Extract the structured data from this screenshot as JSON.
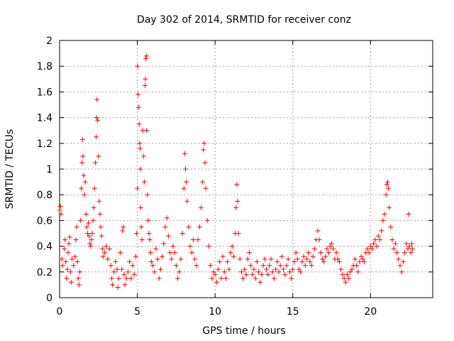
{
  "chart_data": {
    "type": "scatter",
    "title": "Day 302 of 2014, SRMTID for receiver conz",
    "xlabel": "GPS time / hours",
    "ylabel": "SRMTID / TECUs",
    "xlim": [
      0,
      24
    ],
    "ylim": [
      0,
      2
    ],
    "x_ticks": [
      0,
      5,
      10,
      15,
      20
    ],
    "y_ticks": [
      0,
      0.2,
      0.4,
      0.6,
      0.8,
      1,
      1.2,
      1.4,
      1.6,
      1.8,
      2
    ],
    "x_tick_labels": [
      "0",
      "5",
      "10",
      "15",
      "20"
    ],
    "y_tick_labels": [
      "0",
      "0.2",
      "0.4",
      "0.6",
      "0.8",
      "1",
      "1.2",
      "1.4",
      "1.6",
      "1.8",
      "2"
    ],
    "grid": true,
    "marker": "+",
    "marker_color": "#ff0000",
    "series": [
      {
        "name": "SRMTID",
        "points": [
          [
            0.0,
            0.68
          ],
          [
            0.05,
            0.71
          ],
          [
            0.1,
            0.65
          ],
          [
            0.15,
            0.3
          ],
          [
            0.2,
            0.25
          ],
          [
            0.3,
            0.38
          ],
          [
            0.35,
            0.45
          ],
          [
            0.4,
            0.28
          ],
          [
            0.45,
            0.15
          ],
          [
            0.5,
            0.22
          ],
          [
            0.55,
            0.35
          ],
          [
            0.6,
            0.42
          ],
          [
            0.65,
            0.47
          ],
          [
            0.7,
            0.2
          ],
          [
            0.75,
            0.12
          ],
          [
            0.8,
            0.3
          ],
          [
            0.9,
            0.25
          ],
          [
            1.0,
            0.32
          ],
          [
            1.05,
            0.45
          ],
          [
            1.1,
            0.55
          ],
          [
            1.15,
            0.28
          ],
          [
            1.2,
            0.15
          ],
          [
            1.25,
            0.1
          ],
          [
            1.3,
            0.2
          ],
          [
            1.35,
            0.6
          ],
          [
            1.4,
            0.85
          ],
          [
            1.45,
            1.05
          ],
          [
            1.48,
            1.23
          ],
          [
            1.5,
            1.1
          ],
          [
            1.55,
            0.95
          ],
          [
            1.6,
            0.8
          ],
          [
            1.65,
            0.9
          ],
          [
            1.7,
            0.65
          ],
          [
            1.75,
            0.55
          ],
          [
            1.8,
            0.5
          ],
          [
            1.85,
            0.58
          ],
          [
            1.9,
            0.48
          ],
          [
            1.95,
            0.42
          ],
          [
            2.0,
            0.4
          ],
          [
            2.05,
            0.45
          ],
          [
            2.1,
            0.5
          ],
          [
            2.15,
            0.6
          ],
          [
            2.2,
            0.7
          ],
          [
            2.25,
            0.85
          ],
          [
            2.3,
            1.05
          ],
          [
            2.35,
            1.25
          ],
          [
            2.38,
            1.4
          ],
          [
            2.4,
            1.54
          ],
          [
            2.45,
            1.38
          ],
          [
            2.5,
            1.1
          ],
          [
            2.55,
            0.75
          ],
          [
            2.6,
            0.65
          ],
          [
            2.65,
            0.55
          ],
          [
            2.7,
            0.48
          ],
          [
            2.75,
            0.38
          ],
          [
            2.8,
            0.32
          ],
          [
            2.9,
            0.35
          ],
          [
            3.0,
            0.4
          ],
          [
            3.1,
            0.3
          ],
          [
            3.2,
            0.38
          ],
          [
            3.3,
            0.25
          ],
          [
            3.35,
            0.15
          ],
          [
            3.4,
            0.1
          ],
          [
            3.5,
            0.2
          ],
          [
            3.6,
            0.28
          ],
          [
            3.7,
            0.22
          ],
          [
            3.75,
            0.08
          ],
          [
            3.8,
            0.15
          ],
          [
            3.9,
            0.35
          ],
          [
            4.0,
            0.22
          ],
          [
            4.05,
            0.52
          ],
          [
            4.1,
            0.55
          ],
          [
            4.15,
            0.18
          ],
          [
            4.2,
            0.1
          ],
          [
            4.3,
            0.15
          ],
          [
            4.4,
            0.2
          ],
          [
            4.5,
            0.28
          ],
          [
            4.6,
            0.15
          ],
          [
            4.7,
            0.25
          ],
          [
            4.8,
            0.18
          ],
          [
            4.9,
            0.32
          ],
          [
            4.95,
            0.5
          ],
          [
            5.0,
            0.85
          ],
          [
            5.02,
            1.8
          ],
          [
            5.05,
            1.58
          ],
          [
            5.08,
            1.48
          ],
          [
            5.12,
            1.35
          ],
          [
            5.15,
            1.2
          ],
          [
            5.18,
            1.16
          ],
          [
            5.2,
            1.0
          ],
          [
            5.22,
            0.7
          ],
          [
            5.25,
            0.55
          ],
          [
            5.3,
            0.45
          ],
          [
            5.35,
            1.3
          ],
          [
            5.4,
            1.1
          ],
          [
            5.45,
            0.9
          ],
          [
            5.5,
            1.65
          ],
          [
            5.52,
            1.7
          ],
          [
            5.55,
            1.86
          ],
          [
            5.58,
            1.88
          ],
          [
            5.6,
            1.3
          ],
          [
            5.65,
            0.8
          ],
          [
            5.7,
            0.6
          ],
          [
            5.75,
            0.5
          ],
          [
            5.8,
            0.45
          ],
          [
            5.85,
            0.35
          ],
          [
            5.9,
            0.28
          ],
          [
            6.0,
            0.25
          ],
          [
            6.1,
            0.2
          ],
          [
            6.2,
            0.38
          ],
          [
            6.3,
            0.3
          ],
          [
            6.4,
            0.15
          ],
          [
            6.5,
            0.22
          ],
          [
            6.6,
            0.32
          ],
          [
            6.7,
            0.42
          ],
          [
            6.8,
            0.55
          ],
          [
            6.9,
            0.62
          ],
          [
            7.0,
            0.48
          ],
          [
            7.1,
            0.35
          ],
          [
            7.2,
            0.3
          ],
          [
            7.3,
            0.4
          ],
          [
            7.4,
            0.35
          ],
          [
            7.5,
            0.25
          ],
          [
            7.6,
            0.15
          ],
          [
            7.7,
            0.2
          ],
          [
            7.8,
            0.3
          ],
          [
            7.9,
            0.5
          ],
          [
            8.0,
            0.85
          ],
          [
            8.05,
            1.12
          ],
          [
            8.1,
            1.0
          ],
          [
            8.15,
            0.9
          ],
          [
            8.2,
            0.75
          ],
          [
            8.3,
            0.55
          ],
          [
            8.4,
            0.4
          ],
          [
            8.5,
            0.35
          ],
          [
            8.6,
            0.45
          ],
          [
            8.7,
            0.3
          ],
          [
            8.8,
            0.25
          ],
          [
            8.9,
            0.45
          ],
          [
            9.0,
            0.55
          ],
          [
            9.1,
            0.7
          ],
          [
            9.2,
            0.9
          ],
          [
            9.25,
            1.15
          ],
          [
            9.3,
            1.2
          ],
          [
            9.35,
            1.05
          ],
          [
            9.4,
            0.85
          ],
          [
            9.5,
            0.6
          ],
          [
            9.6,
            0.4
          ],
          [
            9.7,
            0.25
          ],
          [
            9.8,
            0.15
          ],
          [
            9.9,
            0.2
          ],
          [
            10.0,
            0.18
          ],
          [
            10.1,
            0.12
          ],
          [
            10.2,
            0.22
          ],
          [
            10.3,
            0.28
          ],
          [
            10.4,
            0.15
          ],
          [
            10.5,
            0.32
          ],
          [
            10.6,
            0.2
          ],
          [
            10.7,
            0.15
          ],
          [
            10.8,
            0.28
          ],
          [
            10.9,
            0.22
          ],
          [
            11.0,
            0.35
          ],
          [
            11.1,
            0.4
          ],
          [
            11.2,
            0.32
          ],
          [
            11.3,
            0.5
          ],
          [
            11.35,
            0.7
          ],
          [
            11.4,
            0.88
          ],
          [
            11.45,
            0.75
          ],
          [
            11.5,
            0.5
          ],
          [
            11.6,
            0.3
          ],
          [
            11.7,
            0.2
          ],
          [
            11.8,
            0.15
          ],
          [
            11.9,
            0.22
          ],
          [
            12.0,
            0.18
          ],
          [
            12.1,
            0.3
          ],
          [
            12.2,
            0.35
          ],
          [
            12.3,
            0.25
          ],
          [
            12.4,
            0.18
          ],
          [
            12.5,
            0.22
          ],
          [
            12.6,
            0.15
          ],
          [
            12.7,
            0.28
          ],
          [
            12.8,
            0.2
          ],
          [
            12.9,
            0.12
          ],
          [
            13.0,
            0.18
          ],
          [
            13.1,
            0.25
          ],
          [
            13.2,
            0.3
          ],
          [
            13.3,
            0.22
          ],
          [
            13.4,
            0.18
          ],
          [
            13.5,
            0.25
          ],
          [
            13.6,
            0.3
          ],
          [
            13.7,
            0.2
          ],
          [
            13.8,
            0.15
          ],
          [
            13.9,
            0.22
          ],
          [
            14.0,
            0.28
          ],
          [
            14.1,
            0.2
          ],
          [
            14.2,
            0.25
          ],
          [
            14.3,
            0.32
          ],
          [
            14.4,
            0.22
          ],
          [
            14.5,
            0.18
          ],
          [
            14.6,
            0.25
          ],
          [
            14.7,
            0.3
          ],
          [
            14.8,
            0.2
          ],
          [
            14.9,
            0.15
          ],
          [
            15.0,
            0.22
          ],
          [
            15.1,
            0.28
          ],
          [
            15.2,
            0.35
          ],
          [
            15.3,
            0.3
          ],
          [
            15.4,
            0.22
          ],
          [
            15.5,
            0.2
          ],
          [
            15.6,
            0.28
          ],
          [
            15.7,
            0.32
          ],
          [
            15.8,
            0.25
          ],
          [
            15.9,
            0.3
          ],
          [
            16.0,
            0.35
          ],
          [
            16.1,
            0.28
          ],
          [
            16.2,
            0.25
          ],
          [
            16.3,
            0.32
          ],
          [
            16.4,
            0.38
          ],
          [
            16.5,
            0.45
          ],
          [
            16.6,
            0.52
          ],
          [
            16.7,
            0.45
          ],
          [
            16.8,
            0.35
          ],
          [
            16.9,
            0.3
          ],
          [
            17.0,
            0.28
          ],
          [
            17.1,
            0.32
          ],
          [
            17.2,
            0.38
          ],
          [
            17.3,
            0.35
          ],
          [
            17.4,
            0.4
          ],
          [
            17.5,
            0.42
          ],
          [
            17.6,
            0.38
          ],
          [
            17.7,
            0.3
          ],
          [
            17.8,
            0.35
          ],
          [
            17.9,
            0.3
          ],
          [
            18.0,
            0.28
          ],
          [
            18.1,
            0.22
          ],
          [
            18.2,
            0.18
          ],
          [
            18.3,
            0.15
          ],
          [
            18.4,
            0.12
          ],
          [
            18.5,
            0.18
          ],
          [
            18.6,
            0.15
          ],
          [
            18.7,
            0.2
          ],
          [
            18.8,
            0.22
          ],
          [
            18.9,
            0.25
          ],
          [
            19.0,
            0.3
          ],
          [
            19.1,
            0.25
          ],
          [
            19.2,
            0.2
          ],
          [
            19.3,
            0.28
          ],
          [
            19.4,
            0.32
          ],
          [
            19.5,
            0.3
          ],
          [
            19.6,
            0.28
          ],
          [
            19.7,
            0.35
          ],
          [
            19.8,
            0.38
          ],
          [
            19.9,
            0.35
          ],
          [
            20.0,
            0.4
          ],
          [
            20.1,
            0.38
          ],
          [
            20.2,
            0.42
          ],
          [
            20.3,
            0.45
          ],
          [
            20.4,
            0.4
          ],
          [
            20.5,
            0.48
          ],
          [
            20.6,
            0.45
          ],
          [
            20.7,
            0.52
          ],
          [
            20.8,
            0.6
          ],
          [
            20.9,
            0.65
          ],
          [
            21.0,
            0.8
          ],
          [
            21.05,
            0.88
          ],
          [
            21.1,
            0.9
          ],
          [
            21.15,
            0.85
          ],
          [
            21.2,
            0.7
          ],
          [
            21.3,
            0.55
          ],
          [
            21.4,
            0.45
          ],
          [
            21.5,
            0.38
          ],
          [
            21.6,
            0.42
          ],
          [
            21.7,
            0.35
          ],
          [
            21.8,
            0.3
          ],
          [
            21.9,
            0.25
          ],
          [
            22.0,
            0.2
          ],
          [
            22.1,
            0.28
          ],
          [
            22.2,
            0.35
          ],
          [
            22.3,
            0.42
          ],
          [
            22.4,
            0.38
          ],
          [
            22.45,
            0.65
          ],
          [
            22.5,
            0.4
          ],
          [
            22.6,
            0.35
          ],
          [
            22.65,
            0.42
          ],
          [
            22.7,
            0.38
          ]
        ]
      }
    ]
  }
}
